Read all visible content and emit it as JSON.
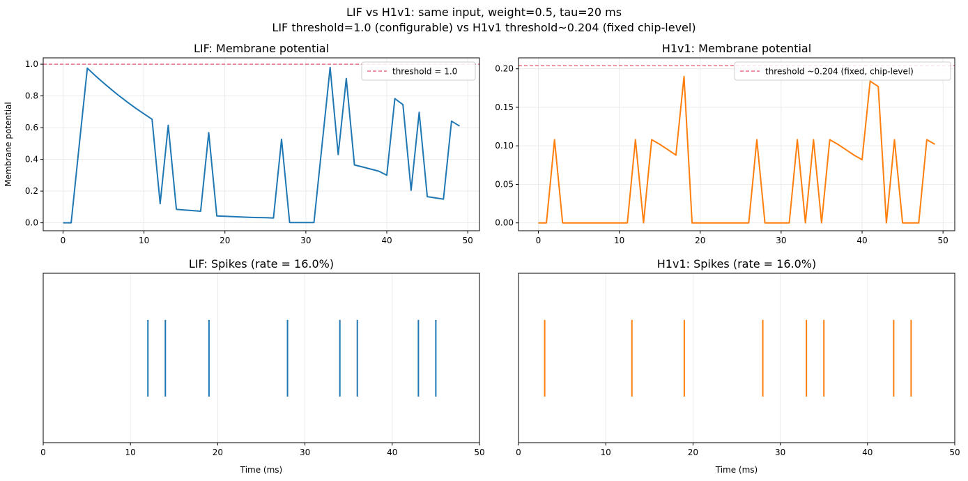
{
  "figure": {
    "title_line1": "LIF vs H1v1: same input, weight=0.5, tau=20 ms",
    "title_line2": "LIF threshold=1.0 (configurable)  vs  H1v1 threshold~0.204 (fixed chip-level)"
  },
  "colors": {
    "lif": "#1f77b4",
    "h1v1": "#ff7f0e",
    "threshold": "#e8506b",
    "grid": "#e6e6e6"
  },
  "chart_data": [
    {
      "id": "lif_membrane",
      "type": "line",
      "title": "LIF: Membrane potential",
      "xlabel": "",
      "ylabel": "Membrane potential",
      "xlim": [
        -2.45,
        51.45
      ],
      "ylim": [
        -0.05,
        1.04
      ],
      "xticks": [
        0,
        10,
        20,
        30,
        40,
        50
      ],
      "yticks": [
        0.0,
        0.2,
        0.4,
        0.6,
        0.8,
        1.0
      ],
      "ytick_labels": [
        "0.0",
        "0.2",
        "0.4",
        "0.6",
        "0.8",
        "1.0"
      ],
      "grid": true,
      "legend_position": "upper right",
      "threshold": {
        "value": 1.0,
        "label": "threshold = 1.0"
      },
      "series": [
        {
          "x": [
            0,
            1,
            2,
            3,
            4,
            5,
            6,
            7,
            8,
            9,
            10,
            11,
            12,
            13,
            14,
            15,
            16,
            17,
            18,
            19,
            20,
            21,
            22,
            23,
            24,
            25,
            26,
            27,
            28,
            29,
            30,
            31,
            32,
            33,
            34,
            35,
            36,
            37,
            38,
            39,
            40,
            41,
            42,
            43,
            44,
            45,
            46,
            47,
            48,
            49
          ],
          "values": [
            0,
            0,
            0.49,
            0.975,
            0.927,
            0.882,
            0.839,
            0.798,
            0.759,
            0.722,
            0.687,
            0.653,
            0.121,
            0.615,
            0.085,
            0.081,
            0.077,
            0.073,
            0.569,
            0.043,
            0.041,
            0.039,
            0.037,
            0.035,
            0.033,
            0.032,
            0.03,
            0.527,
            0.002,
            0.002,
            0.002,
            0.002,
            0.49,
            0.98,
            0.43,
            0.91,
            0.365,
            0.352,
            0.339,
            0.326,
            0.3,
            0.783,
            0.745,
            0.205,
            0.697,
            0.165,
            0.157,
            0.149,
            0.641,
            0.61
          ]
        }
      ]
    },
    {
      "id": "h1v1_membrane",
      "type": "line",
      "title": "H1v1: Membrane potential",
      "xlabel": "",
      "ylabel": "",
      "xlim": [
        -2.45,
        51.45
      ],
      "ylim": [
        -0.0102,
        0.2142
      ],
      "xticks": [
        0,
        10,
        20,
        30,
        40,
        50
      ],
      "yticks": [
        0.0,
        0.05,
        0.1,
        0.15,
        0.2
      ],
      "ytick_labels": [
        "0.00",
        "0.05",
        "0.10",
        "0.15",
        "0.20"
      ],
      "grid": true,
      "legend_position": "upper right",
      "threshold": {
        "value": 0.204,
        "label": "threshold ~0.204 (fixed, chip-level)"
      },
      "series": [
        {
          "x": [
            0,
            1,
            2,
            3,
            4,
            5,
            6,
            7,
            8,
            9,
            10,
            11,
            12,
            13,
            14,
            15,
            16,
            17,
            18,
            19,
            20,
            21,
            22,
            23,
            24,
            25,
            26,
            27,
            28,
            29,
            30,
            31,
            32,
            33,
            34,
            35,
            36,
            37,
            38,
            39,
            40,
            41,
            42,
            43,
            44,
            45,
            46,
            47,
            48,
            49
          ],
          "values": [
            0,
            0,
            0.108,
            0,
            0,
            0,
            0,
            0,
            0,
            0,
            0,
            0,
            0.108,
            0,
            0.108,
            0.102,
            0.095,
            0.088,
            0.19,
            0,
            0,
            0,
            0,
            0,
            0,
            0,
            0,
            0.108,
            0,
            0,
            0,
            0,
            0.108,
            0,
            0.108,
            0,
            0.108,
            0.102,
            0.095,
            0.088,
            0.082,
            0.184,
            0.177,
            0,
            0.108,
            0,
            0,
            0,
            0.108,
            0.102
          ]
        }
      ]
    },
    {
      "id": "lif_spikes",
      "type": "scatter",
      "title": "LIF: Spikes  (rate = 16.0%)",
      "xlabel": "Time (ms)",
      "xlim": [
        0,
        50
      ],
      "xticks": [
        0,
        10,
        20,
        30,
        40,
        50
      ],
      "grid": true,
      "spike_times": [
        12,
        14,
        19,
        28,
        34,
        36,
        43,
        45
      ]
    },
    {
      "id": "h1v1_spikes",
      "type": "scatter",
      "title": "H1v1: Spikes  (rate = 16.0%)",
      "xlabel": "Time (ms)",
      "xlim": [
        0,
        50
      ],
      "xticks": [
        0,
        10,
        20,
        30,
        40,
        50
      ],
      "grid": true,
      "spike_times": [
        3,
        13,
        19,
        28,
        33,
        35,
        43,
        45
      ]
    }
  ]
}
